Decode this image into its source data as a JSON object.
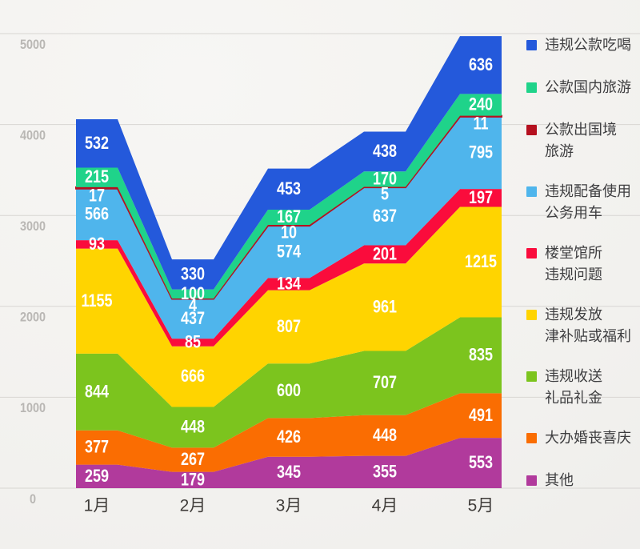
{
  "chart_data": {
    "type": "area",
    "stacked": true,
    "title": "",
    "x_categories": [
      "1月",
      "2月",
      "3月",
      "4月",
      "5月"
    ],
    "y_ticks": [
      0,
      1000,
      2000,
      3000,
      4000,
      5000
    ],
    "ylim": [
      0,
      5000
    ],
    "grid": true,
    "legend_position": "right",
    "series": [
      {
        "name": "违规公款吃喝",
        "legend_lines": [
          "违规公款吃喝"
        ],
        "color": "#2459db",
        "values": [
          532,
          330,
          453,
          438,
          636
        ]
      },
      {
        "name": "公款国内旅游",
        "legend_lines": [
          "公款国内旅游"
        ],
        "color": "#1fd38a",
        "values": [
          215,
          100,
          167,
          170,
          240
        ]
      },
      {
        "name": "公款出国境旅游",
        "legend_lines": [
          "公款出国境",
          "旅游"
        ],
        "color": "#b5101f",
        "values": [
          17,
          4,
          10,
          5,
          11
        ]
      },
      {
        "name": "违规配备使用公务用车",
        "legend_lines": [
          "违规配备使用",
          "公务用车"
        ],
        "color": "#4fb5ec",
        "values": [
          566,
          437,
          574,
          637,
          795
        ]
      },
      {
        "name": "楼堂馆所违规问题",
        "legend_lines": [
          "楼堂馆所",
          "违规问题"
        ],
        "color": "#fa0c3c",
        "values": [
          93,
          85,
          134,
          201,
          197
        ]
      },
      {
        "name": "违规发放津补贴或福利",
        "legend_lines": [
          "违规发放",
          "津补贴或福利"
        ],
        "color": "#ffd400",
        "values": [
          1155,
          666,
          807,
          961,
          1215
        ]
      },
      {
        "name": "违规收送礼品礼金",
        "legend_lines": [
          "违规收送",
          "礼品礼金"
        ],
        "color": "#7cc41e",
        "values": [
          844,
          448,
          600,
          707,
          835
        ]
      },
      {
        "name": "大办婚丧喜庆",
        "legend_lines": [
          "大办婚丧喜庆"
        ],
        "color": "#fa6d02",
        "values": [
          377,
          267,
          426,
          448,
          491
        ]
      },
      {
        "name": "其他",
        "legend_lines": [
          "其他"
        ],
        "color": "#b13a9c",
        "values": [
          259,
          179,
          345,
          355,
          553
        ]
      }
    ],
    "style": {
      "background": "#f2f1ee",
      "gridline_color": "#d8d6d3",
      "y_tick_color": "#b9b7b4",
      "x_tick_color": "#403d3a",
      "value_label_color": "#ffffff"
    }
  }
}
